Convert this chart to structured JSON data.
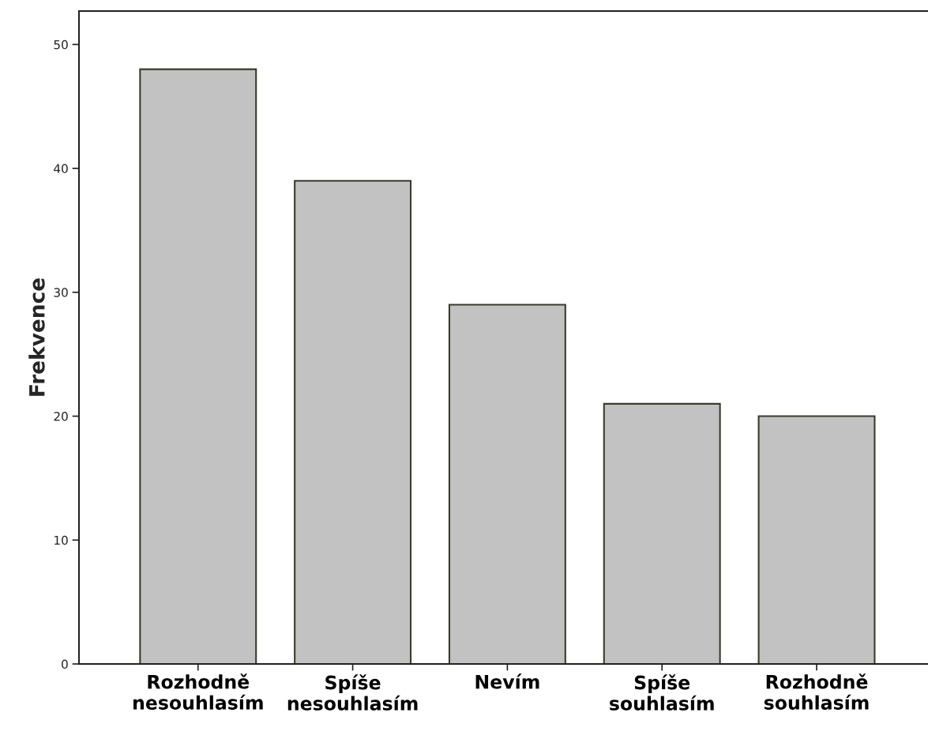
{
  "chart_data": {
    "type": "bar",
    "ylabel": "Frekvence",
    "categories": [
      "Rozhodně\nnesouhlasím",
      "Spíše\nnesouhlasím",
      "Nevím",
      "Spíše\nsouhlasím",
      "Rozhodně\nsouhlasím"
    ],
    "values": [
      48,
      39,
      29,
      21,
      20
    ],
    "color": "#c2c2c2",
    "ylim": [
      0,
      52.7
    ],
    "yticks": [
      0,
      10,
      20,
      30,
      40,
      50
    ]
  }
}
